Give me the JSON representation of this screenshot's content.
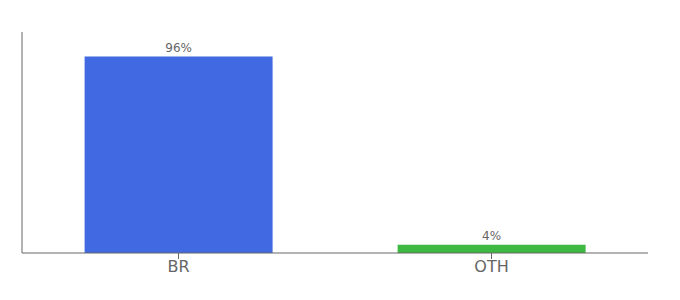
{
  "chart_data": {
    "type": "bar",
    "categories": [
      "BR",
      "OTH"
    ],
    "values": [
      96,
      4
    ],
    "value_labels": [
      "96%",
      "4%"
    ],
    "colors": [
      "#4169e1",
      "#3cb843"
    ],
    "ylim": [
      0,
      108
    ],
    "data_labels": true,
    "tick_labels": "x"
  }
}
